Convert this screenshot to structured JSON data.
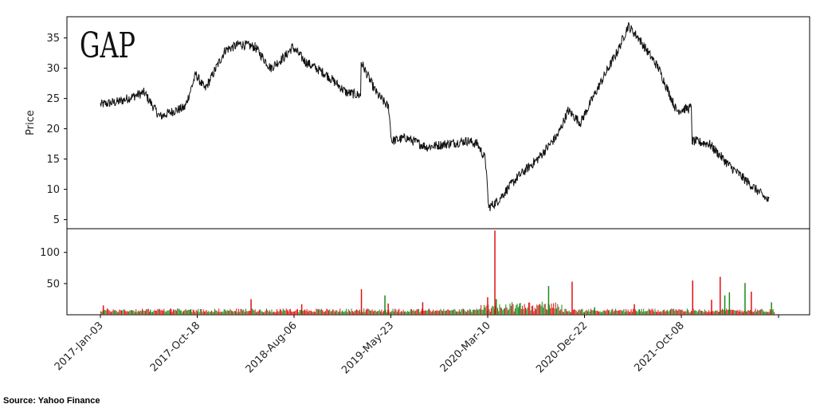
{
  "logo": {
    "text": "GAP"
  },
  "source": "Source: Yahoo Finance",
  "colors": {
    "price_line": "#111111",
    "volume_up": "#1a8a1a",
    "volume_down": "#e01010",
    "axes": "#000000"
  },
  "chart_data": [
    {
      "type": "line",
      "title": "",
      "xlabel": "",
      "ylabel": "Price",
      "ylim": [
        3.5,
        38.5
      ],
      "yticks": [
        5,
        10,
        15,
        20,
        25,
        30,
        35
      ],
      "grid": false,
      "series": [
        {
          "x": [
            "2017-01-03",
            "2017-03-01",
            "2017-05-15",
            "2017-07-01",
            "2017-08-15",
            "2017-09-15",
            "2017-10-18",
            "2017-11-15",
            "2018-01-15",
            "2018-03-01",
            "2018-04-15",
            "2018-06-01",
            "2018-07-15",
            "2018-08-06",
            "2018-09-15",
            "2018-11-15",
            "2019-01-15",
            "2019-02-28",
            "2019-03-01",
            "2019-04-15",
            "2019-05-23",
            "2019-06-01",
            "2019-07-15",
            "2019-09-15",
            "2019-11-15",
            "2020-01-15",
            "2020-02-15",
            "2020-03-10",
            "2020-03-20",
            "2020-04-15",
            "2020-05-15",
            "2020-06-15",
            "2020-08-15",
            "2020-10-15",
            "2020-11-15",
            "2020-12-22",
            "2021-02-15",
            "2021-04-15",
            "2021-05-15",
            "2021-06-15",
            "2021-08-15",
            "2021-10-08",
            "2021-11-23",
            "2021-11-24",
            "2022-01-15",
            "2022-03-15",
            "2022-05-15",
            "2022-07-15"
          ],
          "y": [
            24,
            24.5,
            26,
            22,
            23,
            23.5,
            29,
            26.5,
            33,
            34,
            33.5,
            30,
            32,
            33.5,
            31,
            29,
            26,
            25.5,
            31,
            26,
            23.5,
            18,
            18.5,
            17,
            17.5,
            18,
            17.5,
            15,
            7,
            8,
            10,
            12,
            15,
            19,
            23,
            21,
            27,
            33,
            37,
            35,
            30,
            23,
            23.5,
            18,
            17.5,
            14,
            11,
            8
          ]
        }
      ]
    },
    {
      "type": "bar",
      "title": "",
      "xlabel": "",
      "ylabel": "",
      "ylim": [
        0,
        138
      ],
      "yticks": [
        50,
        100
      ],
      "xticks": [
        "2017-Jan-03",
        "2017-Oct-18",
        "2018-Aug-06",
        "2019-May-23",
        "2020-Mar-10",
        "2020-Dec-22",
        "2021-Oct-08"
      ],
      "series": [
        {
          "name": "",
          "color": "#1a8a1a",
          "x": [
            "2017-06-01",
            "2017-10-01",
            "2019-05-10",
            "2020-04-10",
            "2020-06-20",
            "2020-09-15",
            "2021-02-01",
            "2022-03-01",
            "2022-03-15",
            "2022-05-01",
            "2022-07-20"
          ],
          "values": [
            8,
            9,
            31,
            25,
            18,
            46,
            12,
            31,
            36,
            51,
            20
          ]
        },
        {
          "name": "",
          "color": "#e01010",
          "x": [
            "2017-01-10",
            "2017-08-01",
            "2018-04-01",
            "2018-09-01",
            "2019-02-28",
            "2019-05-20",
            "2019-09-01",
            "2020-03-15",
            "2020-04-06",
            "2020-11-25",
            "2021-06-01",
            "2021-11-24",
            "2022-01-20",
            "2022-02-15",
            "2022-05-20"
          ],
          "values": [
            15,
            10,
            25,
            17,
            41,
            18,
            20,
            28,
            135,
            53,
            17,
            55,
            24,
            61,
            37
          ]
        }
      ]
    }
  ]
}
